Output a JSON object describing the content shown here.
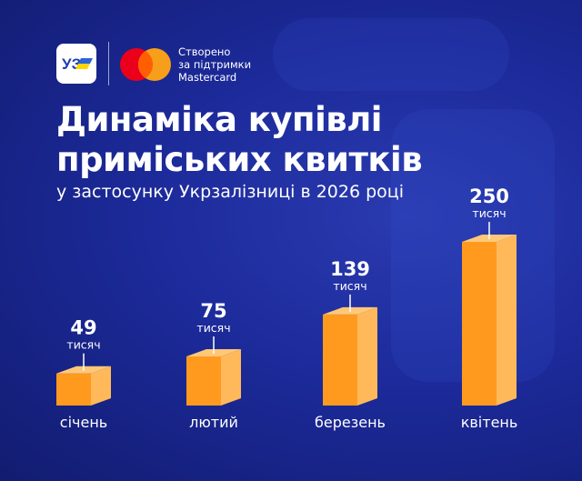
{
  "brand": {
    "uz_logo_text": "УЗ",
    "support_lines": [
      "Створено",
      "за підтримки",
      "Mastercard"
    ],
    "colors": {
      "mc_red": "#eb001b",
      "mc_yellow": "#f79e1b",
      "mc_overlap": "#ff5f00",
      "uz_blue": "#1a3fb0",
      "uz_yellow": "#ffd400"
    }
  },
  "title_lines": [
    "Динаміка купівлі",
    "приміських квитків"
  ],
  "subtitle": "у застосунку Укрзалізниці в 2026 році",
  "chart_data": {
    "type": "bar",
    "title": "Динаміка купівлі приміських квитків",
    "subtitle": "у застосунку Укрзалізниці в 2026 році",
    "categories": [
      "січень",
      "лютий",
      "березень",
      "квітень"
    ],
    "values": [
      49,
      75,
      139,
      250
    ],
    "value_unit": "тисяч",
    "value_labels": [
      "49",
      "75",
      "139",
      "250"
    ],
    "xlabel": "",
    "ylabel": "",
    "grid": false,
    "legend": "none",
    "colors": {
      "bar_front": "#ff9a1f",
      "bar_side": "#ffb95a",
      "bar_top": "#ffc877",
      "text": "#ffffff"
    }
  }
}
